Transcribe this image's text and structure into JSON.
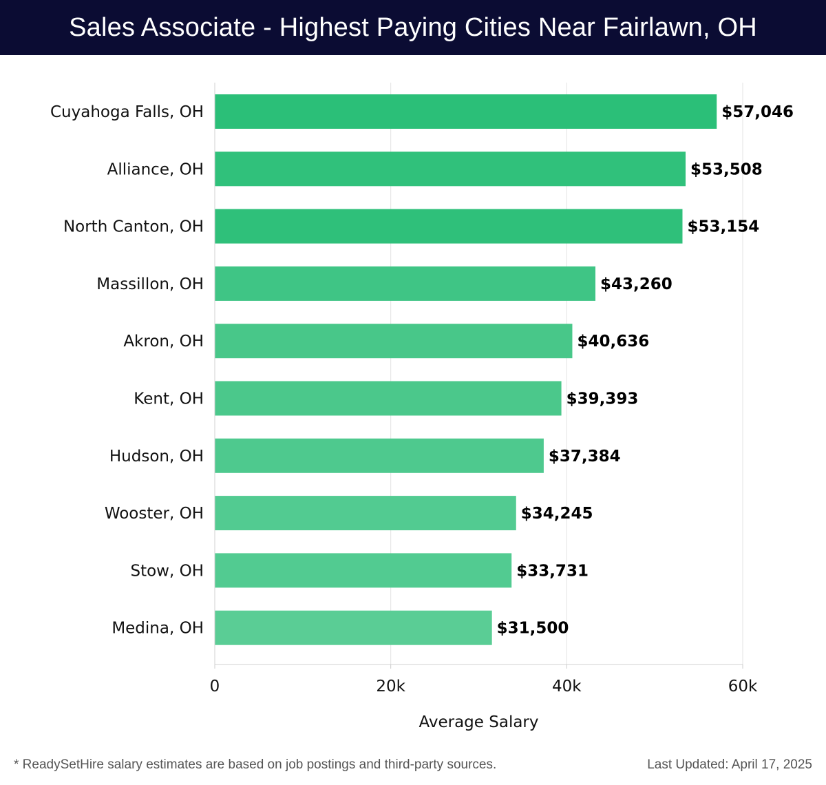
{
  "header": {
    "title": "Sales Associate - Highest Paying Cities Near Fairlawn, OH"
  },
  "footer": {
    "note": "* ReadySetHire salary estimates are based on job postings and third-party sources.",
    "updated": "Last Updated: April 17, 2025"
  },
  "chart_data": {
    "type": "bar",
    "orientation": "horizontal",
    "title": "Sales Associate - Highest Paying Cities Near Fairlawn, OH",
    "xlabel": "Average Salary",
    "ylabel": "",
    "xlim": [
      0,
      60000
    ],
    "ticks": [
      0,
      20000,
      40000,
      60000
    ],
    "tick_labels": [
      "0",
      "20k",
      "40k",
      "60k"
    ],
    "grid": true,
    "categories": [
      "Cuyahoga Falls, OH",
      "Alliance, OH",
      "North Canton, OH",
      "Massillon, OH",
      "Akron, OH",
      "Kent, OH",
      "Hudson, OH",
      "Wooster, OH",
      "Stow, OH",
      "Medina, OH"
    ],
    "values": [
      57046,
      53508,
      53154,
      43260,
      40636,
      39393,
      37384,
      34245,
      33731,
      31500
    ],
    "value_labels": [
      "$57,046",
      "$53,508",
      "$53,154",
      "$43,260",
      "$40,636",
      "$39,393",
      "$37,384",
      "$34,245",
      "$33,731",
      "$31,500"
    ],
    "colors": [
      "#2bbf78",
      "#30c17b",
      "#2fc07a",
      "#3fc585",
      "#48c789",
      "#4bc88b",
      "#4ec98e",
      "#52cb91",
      "#52cb91",
      "#5acd95"
    ]
  }
}
